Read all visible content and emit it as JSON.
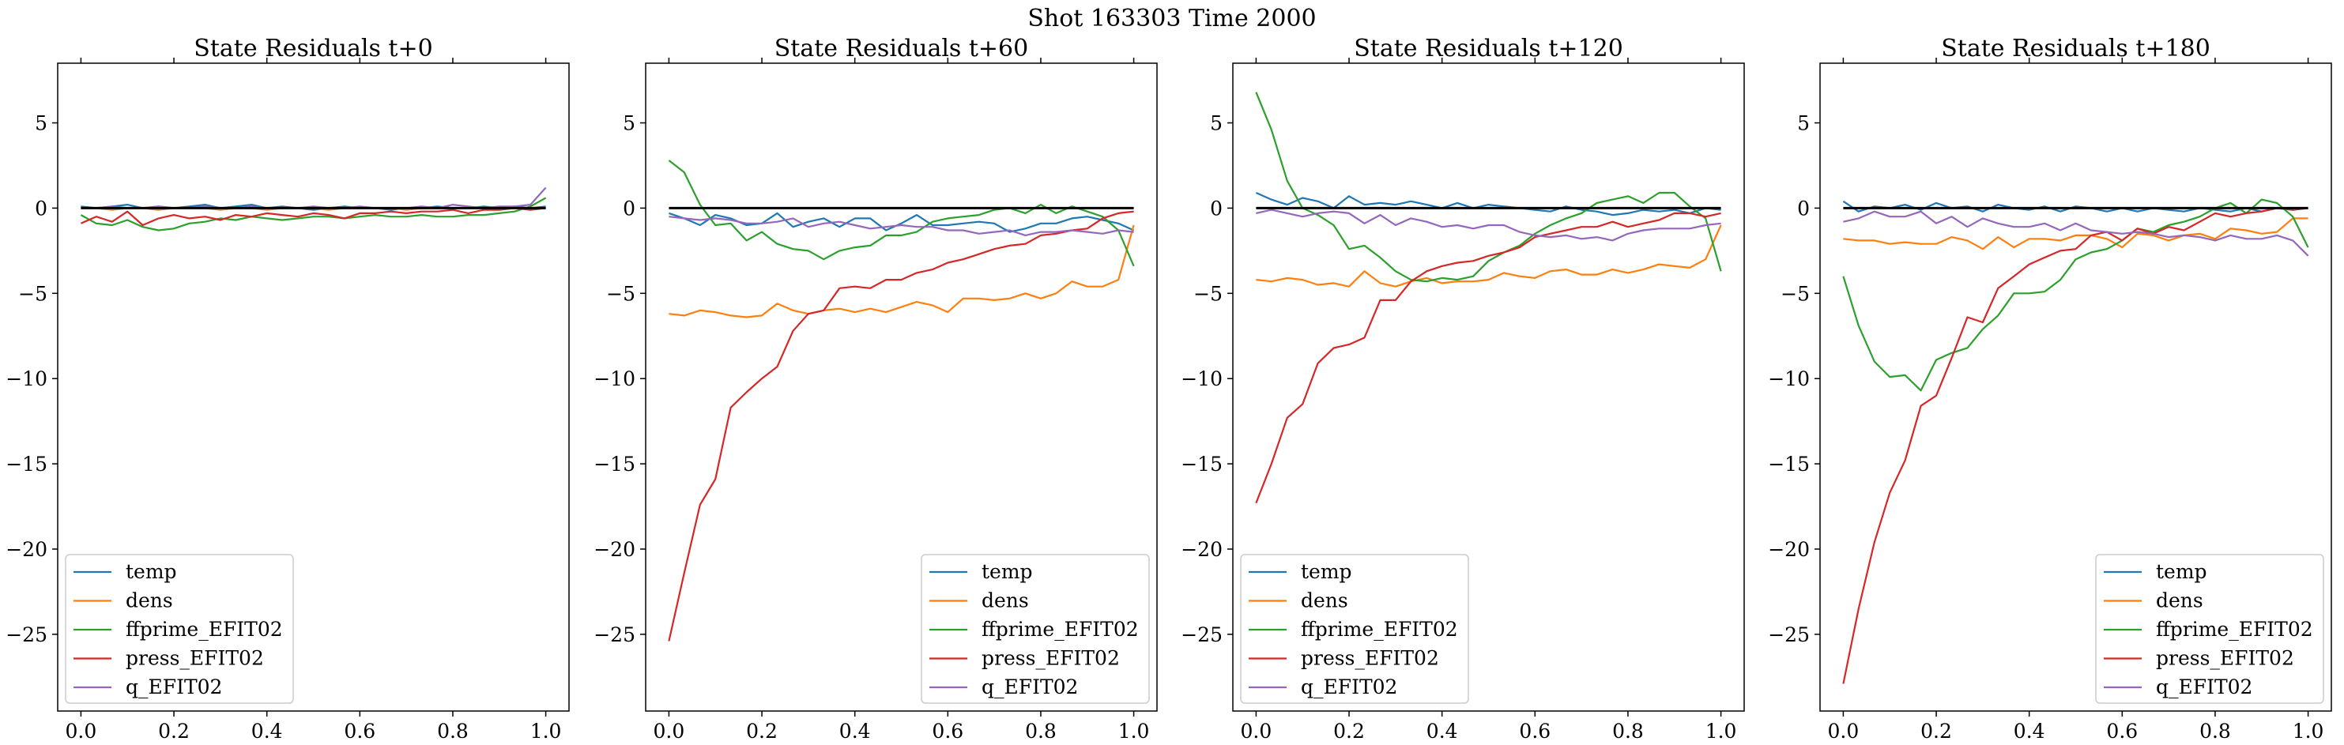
{
  "figure": {
    "suptitle": "Shot 163303   Time 2000"
  },
  "chart_data": [
    {
      "type": "line",
      "title": "State Residuals t+0",
      "xlim": [
        -0.05,
        1.05
      ],
      "ylim": [
        -29.5,
        8.5
      ],
      "xticks": [
        "0.0",
        "0.2",
        "0.4",
        "0.6",
        "0.8",
        "1.0"
      ],
      "yticks": [
        "5",
        "0",
        "−5",
        "−10",
        "−15",
        "−20",
        "−25"
      ],
      "legend_position": "lower left",
      "x": [
        0.0,
        0.033,
        0.067,
        0.1,
        0.133,
        0.167,
        0.2,
        0.233,
        0.267,
        0.3,
        0.333,
        0.367,
        0.4,
        0.433,
        0.467,
        0.5,
        0.533,
        0.567,
        0.6,
        0.633,
        0.667,
        0.7,
        0.733,
        0.767,
        0.8,
        0.833,
        0.867,
        0.9,
        0.933,
        0.967,
        1.0
      ],
      "series": [
        {
          "name": "temp",
          "color": "#1f77b4",
          "values": [
            0.1,
            0.0,
            0.1,
            0.2,
            0.0,
            0.1,
            0.0,
            0.1,
            0.2,
            0.0,
            0.1,
            0.2,
            0.0,
            0.1,
            0.0,
            -0.1,
            0.0,
            0.1,
            0.0,
            0.0,
            -0.1,
            0.0,
            0.0,
            0.1,
            0.0,
            0.0,
            0.1,
            0.0,
            0.1,
            0.0,
            0.1
          ]
        },
        {
          "name": "dens",
          "color": "#ff7f0e",
          "values": [
            0.0,
            0.0,
            -0.1,
            0.0,
            0.0,
            -0.1,
            0.0,
            0.0,
            0.0,
            -0.1,
            0.0,
            0.0,
            -0.1,
            0.0,
            0.0,
            0.0,
            -0.1,
            0.0,
            0.0,
            0.0,
            0.0,
            -0.1,
            0.0,
            0.0,
            0.0,
            0.0,
            0.0,
            0.0,
            0.0,
            0.0,
            0.0
          ]
        },
        {
          "name": "ffprime_EFIT02",
          "color": "#2ca02c",
          "values": [
            -0.4,
            -0.9,
            -1.0,
            -0.7,
            -1.1,
            -1.3,
            -1.2,
            -0.9,
            -0.8,
            -0.6,
            -0.7,
            -0.5,
            -0.6,
            -0.7,
            -0.6,
            -0.5,
            -0.5,
            -0.6,
            -0.5,
            -0.4,
            -0.5,
            -0.5,
            -0.4,
            -0.5,
            -0.5,
            -0.4,
            -0.4,
            -0.3,
            -0.2,
            0.1,
            0.6
          ]
        },
        {
          "name": "press_EFIT02",
          "color": "#d62728",
          "values": [
            -0.9,
            -0.5,
            -0.8,
            -0.2,
            -1.0,
            -0.6,
            -0.4,
            -0.6,
            -0.5,
            -0.7,
            -0.4,
            -0.5,
            -0.3,
            -0.4,
            -0.5,
            -0.3,
            -0.4,
            -0.6,
            -0.3,
            -0.3,
            -0.2,
            -0.3,
            -0.2,
            -0.2,
            -0.1,
            -0.3,
            -0.1,
            -0.1,
            0.0,
            -0.1,
            0.0
          ]
        },
        {
          "name": "q_EFIT02",
          "color": "#9467bd",
          "values": [
            0.0,
            0.0,
            0.1,
            0.0,
            0.0,
            0.1,
            0.0,
            0.0,
            0.1,
            0.0,
            0.0,
            0.1,
            0.0,
            0.0,
            0.0,
            0.1,
            0.0,
            0.0,
            0.1,
            0.0,
            0.0,
            0.0,
            0.1,
            0.0,
            0.2,
            0.1,
            0.0,
            0.1,
            0.1,
            0.2,
            1.2
          ]
        }
      ],
      "reference_line": 0
    },
    {
      "type": "line",
      "title": "State Residuals t+60",
      "xlim": [
        -0.05,
        1.05
      ],
      "ylim": [
        -29.5,
        8.5
      ],
      "xticks": [
        "0.0",
        "0.2",
        "0.4",
        "0.6",
        "0.8",
        "1.0"
      ],
      "yticks": [
        "5",
        "0",
        "−5",
        "−10",
        "−15",
        "−20",
        "−25"
      ],
      "legend_position": "lower right",
      "x": [
        0.0,
        0.033,
        0.067,
        0.1,
        0.133,
        0.167,
        0.2,
        0.233,
        0.267,
        0.3,
        0.333,
        0.367,
        0.4,
        0.433,
        0.467,
        0.5,
        0.533,
        0.567,
        0.6,
        0.633,
        0.667,
        0.7,
        0.733,
        0.767,
        0.8,
        0.833,
        0.867,
        0.9,
        0.933,
        0.967,
        1.0
      ],
      "series": [
        {
          "name": "temp",
          "color": "#1f77b4",
          "values": [
            -0.3,
            -0.6,
            -1.0,
            -0.4,
            -0.6,
            -1.0,
            -0.9,
            -0.3,
            -1.1,
            -0.8,
            -0.6,
            -1.1,
            -0.6,
            -0.6,
            -1.3,
            -0.9,
            -0.4,
            -1.0,
            -1.0,
            -0.9,
            -0.8,
            -0.9,
            -1.4,
            -1.2,
            -0.9,
            -0.9,
            -0.6,
            -0.5,
            -0.7,
            -0.9,
            -1.3
          ]
        },
        {
          "name": "dens",
          "color": "#ff7f0e",
          "values": [
            -6.2,
            -6.3,
            -6.0,
            -6.1,
            -6.3,
            -6.4,
            -6.3,
            -5.6,
            -6.0,
            -6.2,
            -6.0,
            -5.9,
            -6.1,
            -5.9,
            -6.1,
            -5.8,
            -5.5,
            -5.7,
            -6.1,
            -5.3,
            -5.3,
            -5.4,
            -5.3,
            -5.0,
            -5.3,
            -5.0,
            -4.3,
            -4.6,
            -4.6,
            -4.2,
            -1.0
          ]
        },
        {
          "name": "ffprime_EFIT02",
          "color": "#2ca02c",
          "values": [
            2.8,
            2.1,
            0.2,
            -1.0,
            -0.9,
            -1.9,
            -1.4,
            -2.1,
            -2.4,
            -2.5,
            -3.0,
            -2.5,
            -2.3,
            -2.2,
            -1.6,
            -1.6,
            -1.4,
            -0.8,
            -0.6,
            -0.5,
            -0.4,
            -0.1,
            0.0,
            -0.3,
            0.2,
            -0.3,
            0.1,
            -0.2,
            -0.5,
            -1.3,
            -3.4
          ]
        },
        {
          "name": "press_EFIT02",
          "color": "#d62728",
          "values": [
            -25.4,
            -21.4,
            -17.4,
            -15.9,
            -11.7,
            -10.8,
            -10.0,
            -9.3,
            -7.2,
            -6.2,
            -6.0,
            -4.7,
            -4.6,
            -4.7,
            -4.2,
            -4.2,
            -3.8,
            -3.6,
            -3.2,
            -3.0,
            -2.7,
            -2.4,
            -2.2,
            -2.1,
            -1.6,
            -1.5,
            -1.3,
            -1.2,
            -0.6,
            -0.3,
            -0.2
          ]
        },
        {
          "name": "q_EFIT02",
          "color": "#9467bd",
          "values": [
            -0.5,
            -0.6,
            -0.7,
            -0.6,
            -0.7,
            -0.9,
            -0.9,
            -0.8,
            -0.6,
            -1.1,
            -0.9,
            -0.8,
            -1.0,
            -1.2,
            -1.1,
            -1.0,
            -1.1,
            -1.1,
            -1.3,
            -1.3,
            -1.5,
            -1.4,
            -1.3,
            -1.6,
            -1.4,
            -1.4,
            -1.3,
            -1.4,
            -1.5,
            -1.3,
            -1.4
          ]
        }
      ],
      "reference_line": 0
    },
    {
      "type": "line",
      "title": "State Residuals t+120",
      "xlim": [
        -0.05,
        1.05
      ],
      "ylim": [
        -29.5,
        8.5
      ],
      "xticks": [
        "0.0",
        "0.2",
        "0.4",
        "0.6",
        "0.8",
        "1.0"
      ],
      "yticks": [
        "5",
        "0",
        "−5",
        "−10",
        "−15",
        "−20",
        "−25"
      ],
      "legend_position": "lower left",
      "x": [
        0.0,
        0.033,
        0.067,
        0.1,
        0.133,
        0.167,
        0.2,
        0.233,
        0.267,
        0.3,
        0.333,
        0.367,
        0.4,
        0.433,
        0.467,
        0.5,
        0.533,
        0.567,
        0.6,
        0.633,
        0.667,
        0.7,
        0.733,
        0.767,
        0.8,
        0.833,
        0.867,
        0.9,
        0.933,
        0.967,
        1.0
      ],
      "series": [
        {
          "name": "temp",
          "color": "#1f77b4",
          "values": [
            0.9,
            0.5,
            0.2,
            0.6,
            0.4,
            0.0,
            0.7,
            0.2,
            0.3,
            0.2,
            0.4,
            0.2,
            0.0,
            0.3,
            0.0,
            0.2,
            0.1,
            0.0,
            -0.1,
            -0.2,
            0.1,
            -0.1,
            -0.2,
            -0.4,
            -0.3,
            -0.1,
            -0.2,
            -0.1,
            -0.3,
            0.0,
            -0.1
          ]
        },
        {
          "name": "dens",
          "color": "#ff7f0e",
          "values": [
            -4.2,
            -4.3,
            -4.1,
            -4.2,
            -4.5,
            -4.4,
            -4.6,
            -3.7,
            -4.4,
            -4.6,
            -4.3,
            -4.1,
            -4.4,
            -4.3,
            -4.3,
            -4.2,
            -3.8,
            -4.0,
            -4.1,
            -3.7,
            -3.6,
            -3.9,
            -3.9,
            -3.6,
            -3.8,
            -3.6,
            -3.3,
            -3.4,
            -3.5,
            -3.0,
            -1.0
          ]
        },
        {
          "name": "ffprime_EFIT02",
          "color": "#2ca02c",
          "values": [
            6.8,
            4.6,
            1.6,
            0.0,
            -0.4,
            -1.0,
            -2.4,
            -2.2,
            -2.9,
            -3.7,
            -4.2,
            -4.3,
            -4.1,
            -4.2,
            -4.0,
            -3.1,
            -2.6,
            -2.2,
            -1.5,
            -1.0,
            -0.6,
            -0.3,
            0.3,
            0.5,
            0.7,
            0.3,
            0.9,
            0.9,
            0.1,
            -0.6,
            -3.7
          ]
        },
        {
          "name": "press_EFIT02",
          "color": "#d62728",
          "values": [
            -17.3,
            -15.0,
            -12.3,
            -11.5,
            -9.1,
            -8.2,
            -8.0,
            -7.6,
            -5.4,
            -5.4,
            -4.3,
            -3.7,
            -3.4,
            -3.2,
            -3.1,
            -2.8,
            -2.6,
            -2.3,
            -1.7,
            -1.5,
            -1.3,
            -1.1,
            -1.1,
            -0.8,
            -1.1,
            -0.9,
            -0.7,
            -0.3,
            -0.3,
            -0.5,
            -0.3
          ]
        },
        {
          "name": "q_EFIT02",
          "color": "#9467bd",
          "values": [
            -0.3,
            -0.1,
            -0.3,
            -0.5,
            -0.3,
            -0.2,
            -0.3,
            -0.9,
            -0.4,
            -1.0,
            -0.6,
            -0.8,
            -1.1,
            -1.0,
            -1.2,
            -1.0,
            -1.0,
            -1.4,
            -1.6,
            -1.7,
            -1.6,
            -1.8,
            -1.7,
            -1.9,
            -1.5,
            -1.3,
            -1.2,
            -1.2,
            -1.2,
            -1.0,
            -0.9
          ]
        }
      ],
      "reference_line": 0
    },
    {
      "type": "line",
      "title": "State Residuals t+180",
      "xlim": [
        -0.05,
        1.05
      ],
      "ylim": [
        -29.5,
        8.5
      ],
      "xticks": [
        "0.0",
        "0.2",
        "0.4",
        "0.6",
        "0.8",
        "1.0"
      ],
      "yticks": [
        "5",
        "0",
        "−5",
        "−10",
        "−15",
        "−20",
        "−25"
      ],
      "legend_position": "lower right",
      "x": [
        0.0,
        0.033,
        0.067,
        0.1,
        0.133,
        0.167,
        0.2,
        0.233,
        0.267,
        0.3,
        0.333,
        0.367,
        0.4,
        0.433,
        0.467,
        0.5,
        0.533,
        0.567,
        0.6,
        0.633,
        0.667,
        0.7,
        0.733,
        0.767,
        0.8,
        0.833,
        0.867,
        0.9,
        0.933,
        0.967,
        1.0
      ],
      "series": [
        {
          "name": "temp",
          "color": "#1f77b4",
          "values": [
            0.4,
            -0.2,
            0.1,
            0.0,
            0.2,
            -0.1,
            0.3,
            0.0,
            0.1,
            -0.2,
            0.2,
            0.0,
            -0.1,
            0.1,
            -0.2,
            0.1,
            0.0,
            -0.2,
            0.0,
            -0.2,
            0.0,
            -0.1,
            -0.2,
            0.0,
            -0.1,
            -0.2,
            0.0,
            -0.2,
            0.0,
            -0.1,
            0.0
          ]
        },
        {
          "name": "dens",
          "color": "#ff7f0e",
          "values": [
            -1.8,
            -1.9,
            -1.9,
            -2.1,
            -2.0,
            -2.1,
            -2.1,
            -1.7,
            -1.9,
            -2.4,
            -1.7,
            -2.3,
            -1.8,
            -1.8,
            -1.9,
            -1.6,
            -1.6,
            -1.8,
            -2.3,
            -1.5,
            -1.6,
            -1.9,
            -1.6,
            -1.5,
            -1.8,
            -1.2,
            -1.3,
            -1.5,
            -1.4,
            -0.6,
            -0.6
          ]
        },
        {
          "name": "ffprime_EFIT02",
          "color": "#2ca02c",
          "values": [
            -4.0,
            -6.9,
            -9.0,
            -9.9,
            -9.8,
            -10.7,
            -8.9,
            -8.5,
            -8.2,
            -7.1,
            -6.3,
            -5.0,
            -5.0,
            -4.9,
            -4.2,
            -3.0,
            -2.6,
            -2.4,
            -1.9,
            -1.2,
            -1.4,
            -1.0,
            -0.8,
            -0.5,
            0.0,
            0.3,
            -0.3,
            0.5,
            0.3,
            -0.5,
            -2.3
          ]
        },
        {
          "name": "press_EFIT02",
          "color": "#d62728",
          "values": [
            -27.9,
            -23.5,
            -19.6,
            -16.7,
            -14.8,
            -11.6,
            -11.0,
            -8.8,
            -6.4,
            -6.7,
            -4.7,
            -4.0,
            -3.3,
            -2.9,
            -2.5,
            -2.4,
            -1.6,
            -1.4,
            -1.9,
            -1.2,
            -1.5,
            -1.1,
            -1.3,
            -0.8,
            -0.3,
            -0.5,
            -0.3,
            -0.2,
            0.0,
            -0.1,
            0.0
          ]
        },
        {
          "name": "q_EFIT02",
          "color": "#9467bd",
          "values": [
            -0.8,
            -0.6,
            -0.2,
            -0.5,
            -0.5,
            -0.2,
            -0.9,
            -0.5,
            -1.1,
            -0.6,
            -0.9,
            -1.1,
            -1.1,
            -0.9,
            -1.3,
            -0.9,
            -1.3,
            -1.4,
            -1.5,
            -1.4,
            -1.5,
            -1.7,
            -1.6,
            -1.7,
            -1.9,
            -1.6,
            -1.8,
            -1.8,
            -1.6,
            -1.9,
            -2.8
          ]
        }
      ],
      "reference_line": 0
    }
  ]
}
